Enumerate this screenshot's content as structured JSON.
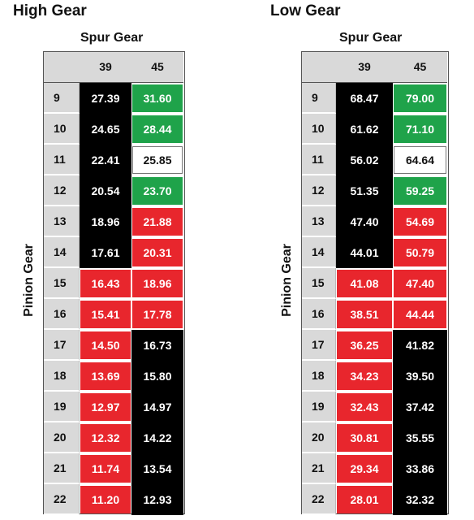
{
  "colors": {
    "black": "#000000",
    "red": "#e8262d",
    "green": "#1fa34a",
    "white": "#ffffff",
    "header_gray": "#d9d9d9"
  },
  "tables": [
    {
      "title": "High Gear",
      "spur_label": "Spur Gear",
      "pinion_label": "Pinion Gear",
      "columns": [
        "39",
        "45"
      ],
      "rows": [
        {
          "pinion": "9",
          "cells": [
            {
              "v": "27.39",
              "c": "black"
            },
            {
              "v": "31.60",
              "c": "green"
            }
          ]
        },
        {
          "pinion": "10",
          "cells": [
            {
              "v": "24.65",
              "c": "black"
            },
            {
              "v": "28.44",
              "c": "green"
            }
          ]
        },
        {
          "pinion": "11",
          "cells": [
            {
              "v": "22.41",
              "c": "black"
            },
            {
              "v": "25.85",
              "c": "white"
            }
          ]
        },
        {
          "pinion": "12",
          "cells": [
            {
              "v": "20.54",
              "c": "black"
            },
            {
              "v": "23.70",
              "c": "green"
            }
          ]
        },
        {
          "pinion": "13",
          "cells": [
            {
              "v": "18.96",
              "c": "black"
            },
            {
              "v": "21.88",
              "c": "red"
            }
          ]
        },
        {
          "pinion": "14",
          "cells": [
            {
              "v": "17.61",
              "c": "black"
            },
            {
              "v": "20.31",
              "c": "red"
            }
          ]
        },
        {
          "pinion": "15",
          "cells": [
            {
              "v": "16.43",
              "c": "red"
            },
            {
              "v": "18.96",
              "c": "red"
            }
          ]
        },
        {
          "pinion": "16",
          "cells": [
            {
              "v": "15.41",
              "c": "red"
            },
            {
              "v": "17.78",
              "c": "red"
            }
          ]
        },
        {
          "pinion": "17",
          "cells": [
            {
              "v": "14.50",
              "c": "red"
            },
            {
              "v": "16.73",
              "c": "black"
            }
          ]
        },
        {
          "pinion": "18",
          "cells": [
            {
              "v": "13.69",
              "c": "red"
            },
            {
              "v": "15.80",
              "c": "black"
            }
          ]
        },
        {
          "pinion": "19",
          "cells": [
            {
              "v": "12.97",
              "c": "red"
            },
            {
              "v": "14.97",
              "c": "black"
            }
          ]
        },
        {
          "pinion": "20",
          "cells": [
            {
              "v": "12.32",
              "c": "red"
            },
            {
              "v": "14.22",
              "c": "black"
            }
          ]
        },
        {
          "pinion": "21",
          "cells": [
            {
              "v": "11.74",
              "c": "red"
            },
            {
              "v": "13.54",
              "c": "black"
            }
          ]
        },
        {
          "pinion": "22",
          "cells": [
            {
              "v": "11.20",
              "c": "red"
            },
            {
              "v": "12.93",
              "c": "black"
            }
          ]
        }
      ]
    },
    {
      "title": "Low Gear",
      "spur_label": "Spur Gear",
      "pinion_label": "Pinion Gear",
      "columns": [
        "39",
        "45"
      ],
      "rows": [
        {
          "pinion": "9",
          "cells": [
            {
              "v": "68.47",
              "c": "black"
            },
            {
              "v": "79.00",
              "c": "green"
            }
          ]
        },
        {
          "pinion": "10",
          "cells": [
            {
              "v": "61.62",
              "c": "black"
            },
            {
              "v": "71.10",
              "c": "green"
            }
          ]
        },
        {
          "pinion": "11",
          "cells": [
            {
              "v": "56.02",
              "c": "black"
            },
            {
              "v": "64.64",
              "c": "white"
            }
          ]
        },
        {
          "pinion": "12",
          "cells": [
            {
              "v": "51.35",
              "c": "black"
            },
            {
              "v": "59.25",
              "c": "green"
            }
          ]
        },
        {
          "pinion": "13",
          "cells": [
            {
              "v": "47.40",
              "c": "black"
            },
            {
              "v": "54.69",
              "c": "red"
            }
          ]
        },
        {
          "pinion": "14",
          "cells": [
            {
              "v": "44.01",
              "c": "black"
            },
            {
              "v": "50.79",
              "c": "red"
            }
          ]
        },
        {
          "pinion": "15",
          "cells": [
            {
              "v": "41.08",
              "c": "red"
            },
            {
              "v": "47.40",
              "c": "red"
            }
          ]
        },
        {
          "pinion": "16",
          "cells": [
            {
              "v": "38.51",
              "c": "red"
            },
            {
              "v": "44.44",
              "c": "red"
            }
          ]
        },
        {
          "pinion": "17",
          "cells": [
            {
              "v": "36.25",
              "c": "red"
            },
            {
              "v": "41.82",
              "c": "black"
            }
          ]
        },
        {
          "pinion": "18",
          "cells": [
            {
              "v": "34.23",
              "c": "red"
            },
            {
              "v": "39.50",
              "c": "black"
            }
          ]
        },
        {
          "pinion": "19",
          "cells": [
            {
              "v": "32.43",
              "c": "red"
            },
            {
              "v": "37.42",
              "c": "black"
            }
          ]
        },
        {
          "pinion": "20",
          "cells": [
            {
              "v": "30.81",
              "c": "red"
            },
            {
              "v": "35.55",
              "c": "black"
            }
          ]
        },
        {
          "pinion": "21",
          "cells": [
            {
              "v": "29.34",
              "c": "red"
            },
            {
              "v": "33.86",
              "c": "black"
            }
          ]
        },
        {
          "pinion": "22",
          "cells": [
            {
              "v": "28.01",
              "c": "red"
            },
            {
              "v": "32.32",
              "c": "black"
            }
          ]
        }
      ]
    }
  ]
}
